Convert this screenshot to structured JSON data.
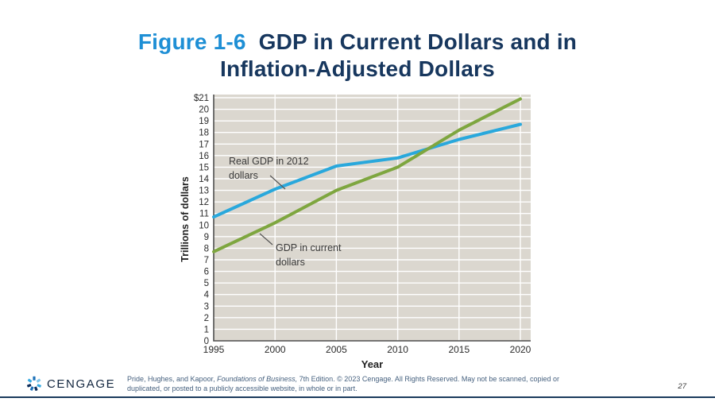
{
  "title": {
    "prefix": "Figure 1-6",
    "line1_rest": "GDP in Current Dollars and in",
    "line2": "Inflation-Adjusted Dollars"
  },
  "colors": {
    "title_accent": "#1e8fd5",
    "title_main": "#17375e",
    "footer_text": "#46617f",
    "bottom_rule": "#1b3a5c",
    "real_gdp_line": "#29a8dc",
    "current_gdp_line": "#7ea63f",
    "plot_background": "#dbd7cf",
    "gridline": "#ffffff",
    "axis": "#4f4f4f",
    "annotation_text": "#3a3a3a"
  },
  "chart_data": {
    "type": "line",
    "title": "",
    "xlabel": "Year",
    "ylabel": "Trillions of dollars",
    "xlim": [
      1995,
      2020
    ],
    "ylim": [
      0,
      21
    ],
    "x_ticks": [
      1995,
      2000,
      2005,
      2010,
      2015,
      2020
    ],
    "y_tick_step": 1,
    "y_top_tick_label": "$21",
    "grid": true,
    "legend_position": "inline-annotations",
    "x": [
      1995,
      2000,
      2005,
      2010,
      2015,
      2020
    ],
    "series": [
      {
        "name": "Real GDP in 2012 dollars",
        "color": "#29a8dc",
        "values": [
          10.7,
          13.1,
          15.1,
          15.8,
          17.4,
          18.7
        ]
      },
      {
        "name": "GDP in current dollars",
        "color": "#7ea63f",
        "values": [
          7.7,
          10.2,
          13.0,
          15.0,
          18.2,
          20.9
        ]
      }
    ],
    "annotations": [
      {
        "lines": [
          "Real GDP in 2012",
          "dollars"
        ],
        "series": "Real GDP in 2012 dollars"
      },
      {
        "lines": [
          "GDP in current",
          "dollars"
        ],
        "series": "GDP in current dollars"
      }
    ]
  },
  "footer": {
    "credit_pre": "Pride, Hughes, and Kapoor, ",
    "credit_italic": "Foundations of Business,",
    "credit_post": " 7th Edition. © 2023 Cengage. All Rights Reserved. May not be scanned, copied or",
    "credit_line2": "duplicated, or posted to a publicly accessible website, in whole or in part.",
    "brand": "CENGAGE",
    "page_number": "27"
  }
}
